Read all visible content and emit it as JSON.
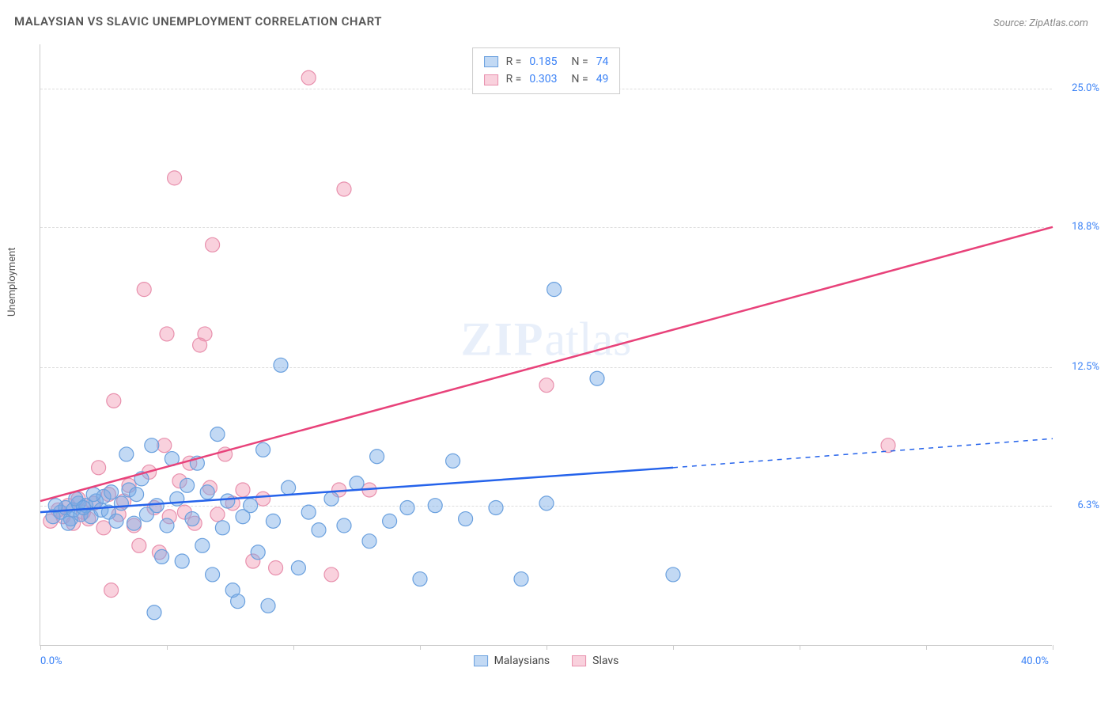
{
  "title": "MALAYSIAN VS SLAVIC UNEMPLOYMENT CORRELATION CHART",
  "source": "Source: ZipAtlas.com",
  "watermark_zip": "ZIP",
  "watermark_atlas": "atlas",
  "y_axis_label": "Unemployment",
  "chart": {
    "type": "scatter",
    "background_color": "#ffffff",
    "grid_color": "#dddddd",
    "grid_dash": "4,4",
    "axis_color": "#cccccc",
    "text_color": "#555555",
    "tick_label_color": "#3b82f6",
    "tick_label_fontsize": 13,
    "title_fontsize": 15,
    "series_a": {
      "name": "Malaysians",
      "fill_color": "rgba(120,170,230,0.45)",
      "stroke_color": "#6aa0de",
      "marker_radius": 9,
      "marker_stroke_width": 1.2,
      "trend_color": "#2563eb",
      "trend_width": 2.5,
      "trend_y_start_pct": 6.0,
      "trend_y_solid_end_x": 25,
      "trend_y_solid_end_pct": 8.0,
      "trend_y_dash_end_x": 40,
      "trend_y_dash_end_pct": 9.3,
      "r_value": "0.185",
      "n_value": "74",
      "points": [
        [
          0.5,
          5.8
        ],
        [
          0.8,
          6.0
        ],
        [
          1.0,
          6.2
        ],
        [
          1.2,
          5.7
        ],
        [
          1.3,
          6.1
        ],
        [
          1.5,
          6.4
        ],
        [
          1.6,
          5.9
        ],
        [
          1.8,
          6.3
        ],
        [
          2.0,
          5.8
        ],
        [
          2.2,
          6.5
        ],
        [
          2.4,
          6.1
        ],
        [
          2.5,
          6.7
        ],
        [
          2.7,
          6.0
        ],
        [
          2.8,
          6.9
        ],
        [
          3.0,
          5.6
        ],
        [
          3.2,
          6.4
        ],
        [
          3.4,
          8.6
        ],
        [
          3.5,
          7.0
        ],
        [
          3.7,
          5.5
        ],
        [
          3.8,
          6.8
        ],
        [
          4.0,
          7.5
        ],
        [
          4.2,
          5.9
        ],
        [
          4.4,
          9.0
        ],
        [
          4.6,
          6.3
        ],
        [
          4.8,
          4.0
        ],
        [
          5.0,
          5.4
        ],
        [
          5.2,
          8.4
        ],
        [
          5.4,
          6.6
        ],
        [
          5.6,
          3.8
        ],
        [
          5.8,
          7.2
        ],
        [
          4.5,
          1.5
        ],
        [
          6.0,
          5.7
        ],
        [
          6.2,
          8.2
        ],
        [
          6.4,
          4.5
        ],
        [
          6.6,
          6.9
        ],
        [
          6.8,
          3.2
        ],
        [
          7.0,
          9.5
        ],
        [
          7.2,
          5.3
        ],
        [
          7.4,
          6.5
        ],
        [
          7.6,
          2.5
        ],
        [
          7.8,
          2.0
        ],
        [
          8.0,
          5.8
        ],
        [
          8.3,
          6.3
        ],
        [
          8.6,
          4.2
        ],
        [
          8.8,
          8.8
        ],
        [
          9.0,
          1.8
        ],
        [
          9.2,
          5.6
        ],
        [
          9.5,
          12.6
        ],
        [
          9.8,
          7.1
        ],
        [
          10.2,
          3.5
        ],
        [
          10.6,
          6.0
        ],
        [
          11.0,
          5.2
        ],
        [
          11.5,
          6.6
        ],
        [
          12.0,
          5.4
        ],
        [
          12.5,
          7.3
        ],
        [
          13.0,
          4.7
        ],
        [
          13.3,
          8.5
        ],
        [
          13.8,
          5.6
        ],
        [
          14.5,
          6.2
        ],
        [
          15.0,
          3.0
        ],
        [
          15.6,
          6.3
        ],
        [
          16.3,
          8.3
        ],
        [
          16.8,
          5.7
        ],
        [
          18.0,
          6.2
        ],
        [
          19.0,
          3.0
        ],
        [
          20.0,
          6.4
        ],
        [
          20.3,
          16.0
        ],
        [
          22.0,
          12.0
        ],
        [
          25.0,
          3.2
        ],
        [
          0.6,
          6.3
        ],
        [
          1.1,
          5.5
        ],
        [
          1.4,
          6.6
        ],
        [
          1.7,
          6.2
        ],
        [
          2.1,
          6.8
        ]
      ]
    },
    "series_b": {
      "name": "Slavs",
      "fill_color": "rgba(240,140,170,0.40)",
      "stroke_color": "#e890ad",
      "marker_radius": 9,
      "marker_stroke_width": 1.2,
      "trend_color": "#e8427a",
      "trend_width": 2.5,
      "trend_y_start_pct": 6.5,
      "trend_y_end_pct": 18.8,
      "r_value": "0.303",
      "n_value": "49",
      "points": [
        [
          0.4,
          5.6
        ],
        [
          0.7,
          6.1
        ],
        [
          0.9,
          5.8
        ],
        [
          1.1,
          6.3
        ],
        [
          1.3,
          5.5
        ],
        [
          1.5,
          6.6
        ],
        [
          1.7,
          6.0
        ],
        [
          1.9,
          5.7
        ],
        [
          2.1,
          6.4
        ],
        [
          2.3,
          8.0
        ],
        [
          2.5,
          5.3
        ],
        [
          2.7,
          6.8
        ],
        [
          2.9,
          11.0
        ],
        [
          3.1,
          5.9
        ],
        [
          3.3,
          6.5
        ],
        [
          3.5,
          7.2
        ],
        [
          3.7,
          5.4
        ],
        [
          3.9,
          4.5
        ],
        [
          4.1,
          16.0
        ],
        [
          4.3,
          7.8
        ],
        [
          4.5,
          6.2
        ],
        [
          4.7,
          4.2
        ],
        [
          4.9,
          9.0
        ],
        [
          5.1,
          5.8
        ],
        [
          5.3,
          21.0
        ],
        [
          5.5,
          7.4
        ],
        [
          5.0,
          14.0
        ],
        [
          5.7,
          6.0
        ],
        [
          5.9,
          8.2
        ],
        [
          6.1,
          5.5
        ],
        [
          6.8,
          18.0
        ],
        [
          6.5,
          14.0
        ],
        [
          6.3,
          13.5
        ],
        [
          6.7,
          7.1
        ],
        [
          7.0,
          5.9
        ],
        [
          7.3,
          8.6
        ],
        [
          7.6,
          6.4
        ],
        [
          8.0,
          7.0
        ],
        [
          8.4,
          3.8
        ],
        [
          8.8,
          6.6
        ],
        [
          9.3,
          3.5
        ],
        [
          10.6,
          25.5
        ],
        [
          11.5,
          3.2
        ],
        [
          12.0,
          20.5
        ],
        [
          13.0,
          7.0
        ],
        [
          20.0,
          11.7
        ],
        [
          33.5,
          9.0
        ],
        [
          2.8,
          2.5
        ],
        [
          11.8,
          7.0
        ]
      ]
    },
    "xlim": [
      0,
      40
    ],
    "ylim": [
      0,
      27
    ],
    "y_gridlines": [
      {
        "value": 6.3,
        "label": "6.3%"
      },
      {
        "value": 12.5,
        "label": "12.5%"
      },
      {
        "value": 18.8,
        "label": "18.8%"
      },
      {
        "value": 25.0,
        "label": "25.0%"
      }
    ],
    "x_ticks": [
      0,
      5,
      10,
      15,
      20,
      25,
      30,
      35,
      40
    ],
    "x_labels": [
      {
        "value": 0,
        "label": "0.0%"
      },
      {
        "value": 40,
        "label": "40.0%"
      }
    ],
    "legend_top": {
      "r_label": "R  =",
      "n_label": "N  ="
    },
    "legend_bottom": {
      "a_label": "Malaysians",
      "b_label": "Slavs"
    }
  }
}
